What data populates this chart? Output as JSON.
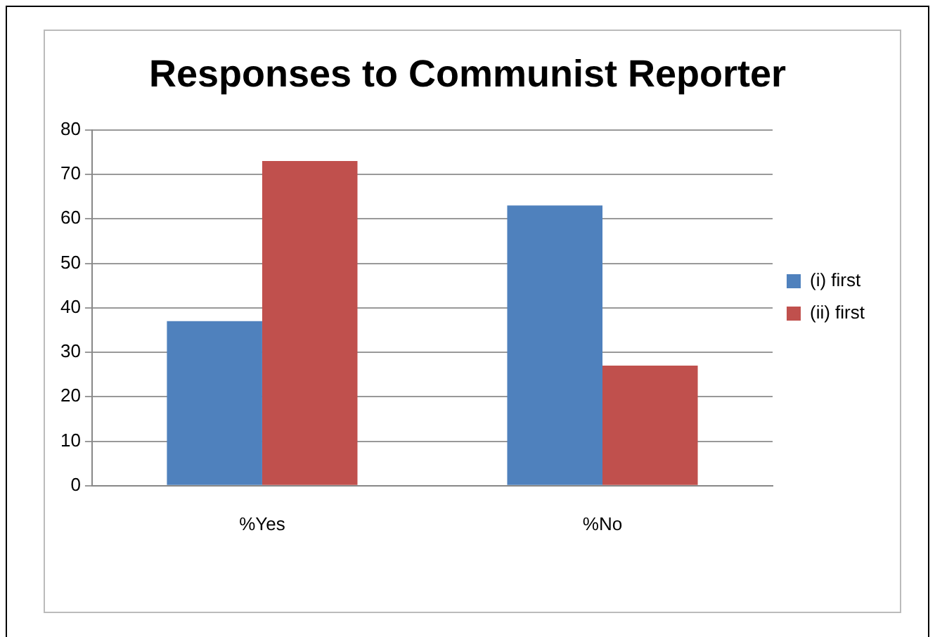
{
  "chart_data": {
    "type": "bar",
    "title": "Responses to Communist Reporter",
    "categories": [
      "%Yes",
      "%No"
    ],
    "series": [
      {
        "name": "(i) first",
        "color": "#4f81bd",
        "values": [
          37,
          63
        ]
      },
      {
        "name": "(ii) first",
        "color": "#c0504d",
        "values": [
          73,
          27
        ]
      }
    ],
    "ylim": [
      0,
      80
    ],
    "yticks": [
      0,
      10,
      20,
      30,
      40,
      50,
      60,
      70,
      80
    ],
    "grid": "y",
    "legend": "right"
  }
}
